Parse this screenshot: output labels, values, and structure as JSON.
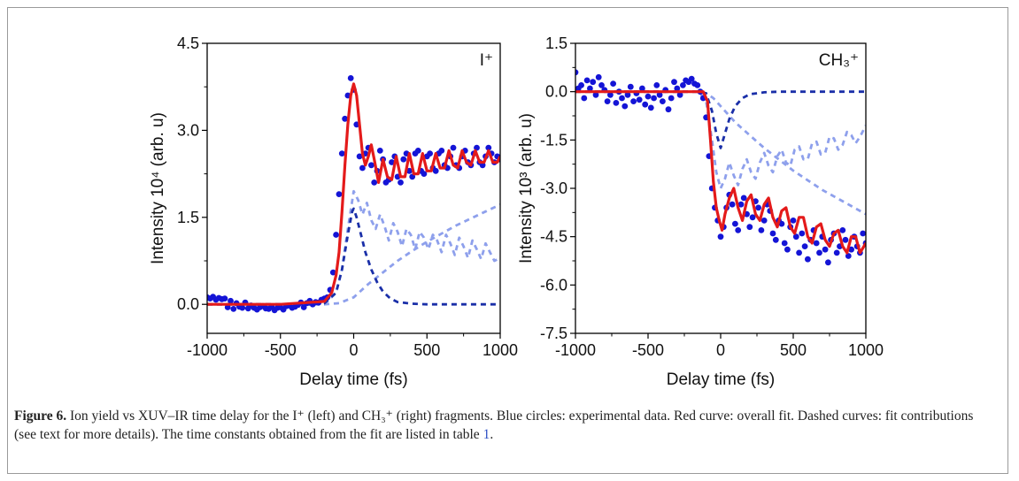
{
  "figure": {
    "caption_label": "Figure 6.",
    "caption_body": "Ion yield vs XUV–IR time delay for the I⁺ (left) and CH₃⁺ (right) fragments. Blue circles: experimental data. Red curve: overall fit. Dashed curves: fit contributions (see text for more details). The time constants obtained from the fit are listed in table ",
    "caption_ref": "1",
    "caption_end": "."
  },
  "colors": {
    "data": "#1414d6",
    "fit": "#e41a1a",
    "dash_dark": "#1a2fa8",
    "dash_light": "#8ea0ec"
  },
  "chart_data": [
    {
      "type": "scatter",
      "panel": "left",
      "label": "I⁺",
      "xlabel": "Delay time (fs)",
      "ylabel": "Intensity 10⁴ (arb. u)",
      "xlim": [
        -1000,
        1000
      ],
      "ylim": [
        -0.5,
        4.5
      ],
      "xticks": [
        -1000,
        -500,
        0,
        500,
        1000
      ],
      "yticks": [
        0.0,
        1.5,
        3.0,
        4.5
      ],
      "ytick_labels": [
        "0.0",
        "1.5",
        "3.0",
        "4.5"
      ],
      "grid": false,
      "series": [
        {
          "kind": "data",
          "x": [
            -1000,
            -980,
            -960,
            -940,
            -920,
            -900,
            -880,
            -860,
            -840,
            -820,
            -800,
            -780,
            -760,
            -740,
            -720,
            -700,
            -680,
            -660,
            -640,
            -620,
            -600,
            -580,
            -560,
            -540,
            -520,
            -500,
            -480,
            -460,
            -440,
            -420,
            -400,
            -380,
            -360,
            -340,
            -320,
            -300,
            -280,
            -260,
            -240,
            -220,
            -200,
            -180,
            -160,
            -140,
            -120,
            -100,
            -80,
            -60,
            -40,
            -20,
            0,
            20,
            40,
            60,
            80,
            100,
            120,
            140,
            160,
            180,
            200,
            220,
            240,
            260,
            280,
            300,
            320,
            340,
            360,
            380,
            400,
            420,
            440,
            460,
            480,
            500,
            520,
            540,
            560,
            580,
            600,
            620,
            640,
            660,
            680,
            700,
            720,
            740,
            760,
            780,
            800,
            820,
            840,
            860,
            880,
            900,
            920,
            940,
            960,
            980,
            1000
          ],
          "y": [
            0.12,
            0.1,
            0.13,
            0.08,
            0.11,
            0.09,
            0.1,
            -0.05,
            0.06,
            -0.08,
            0.02,
            -0.04,
            -0.06,
            0.03,
            -0.07,
            -0.02,
            -0.06,
            -0.09,
            -0.05,
            -0.03,
            -0.07,
            -0.08,
            -0.04,
            -0.1,
            -0.06,
            -0.05,
            -0.09,
            -0.03,
            -0.02,
            -0.06,
            -0.04,
            -0.01,
            0.03,
            -0.05,
            0.02,
            0.06,
            0.0,
            0.04,
            0.03,
            0.08,
            0.1,
            0.12,
            0.25,
            0.55,
            1.2,
            1.9,
            2.6,
            3.2,
            3.6,
            3.9,
            3.7,
            3.1,
            2.55,
            2.35,
            2.6,
            2.7,
            2.4,
            2.1,
            2.3,
            2.65,
            2.5,
            2.1,
            2.15,
            2.45,
            2.55,
            2.2,
            2.1,
            2.5,
            2.6,
            2.3,
            2.2,
            2.6,
            2.65,
            2.3,
            2.25,
            2.55,
            2.6,
            2.35,
            2.3,
            2.6,
            2.65,
            2.4,
            2.35,
            2.55,
            2.7,
            2.4,
            2.35,
            2.55,
            2.65,
            2.45,
            2.4,
            2.6,
            2.7,
            2.45,
            2.4,
            2.55,
            2.7,
            2.6,
            2.45,
            2.55,
            2.5
          ]
        },
        {
          "kind": "fit",
          "x": [
            -1000,
            -500,
            -200,
            -150,
            -120,
            -100,
            -80,
            -60,
            -40,
            -20,
            0,
            20,
            40,
            60,
            80,
            100,
            120,
            140,
            170,
            200,
            230,
            260,
            290,
            320,
            350,
            380,
            410,
            440,
            470,
            500,
            530,
            560,
            590,
            620,
            650,
            680,
            710,
            740,
            770,
            800,
            830,
            860,
            890,
            920,
            950,
            980,
            1000
          ],
          "y": [
            0.0,
            0.0,
            0.05,
            0.2,
            0.5,
            0.9,
            1.6,
            2.4,
            3.1,
            3.6,
            3.8,
            3.6,
            3.1,
            2.6,
            2.4,
            2.55,
            2.75,
            2.5,
            2.1,
            2.5,
            2.2,
            2.15,
            2.55,
            2.2,
            2.2,
            2.6,
            2.25,
            2.25,
            2.6,
            2.3,
            2.3,
            2.6,
            2.35,
            2.35,
            2.65,
            2.4,
            2.35,
            2.65,
            2.45,
            2.4,
            2.65,
            2.45,
            2.45,
            2.65,
            2.45,
            2.45,
            2.55
          ]
        },
        {
          "kind": "dash_dark",
          "x": [
            -1000,
            -300,
            -200,
            -120,
            -80,
            -40,
            -10,
            0,
            20,
            50,
            80,
            120,
            160,
            200,
            250,
            300,
            400,
            500,
            700,
            1000
          ],
          "y": [
            0.0,
            0.0,
            0.02,
            0.2,
            0.6,
            1.2,
            1.6,
            1.65,
            1.5,
            1.2,
            0.9,
            0.6,
            0.38,
            0.22,
            0.1,
            0.04,
            0.01,
            0.0,
            0.0,
            0.0
          ]
        },
        {
          "kind": "dash_light_oscillating",
          "x": [
            -1000,
            -200,
            -120,
            -80,
            -40,
            0,
            30,
            60,
            90,
            120,
            150,
            180,
            210,
            240,
            270,
            300,
            330,
            360,
            390,
            420,
            450,
            480,
            510,
            540,
            570,
            600,
            630,
            660,
            690,
            720,
            750,
            780,
            810,
            840,
            870,
            900,
            930,
            960,
            1000
          ],
          "y": [
            0.0,
            0.0,
            0.2,
            0.6,
            1.3,
            1.95,
            1.8,
            1.55,
            1.75,
            1.45,
            1.3,
            1.55,
            1.35,
            1.1,
            1.4,
            1.25,
            1.0,
            1.3,
            1.2,
            0.95,
            1.25,
            1.15,
            0.95,
            1.2,
            1.1,
            0.9,
            1.2,
            1.05,
            0.85,
            1.15,
            1.0,
            0.8,
            1.1,
            0.95,
            0.78,
            1.05,
            0.9,
            0.75,
            0.8
          ]
        },
        {
          "kind": "dash_light_rising",
          "x": [
            -1000,
            -200,
            -100,
            0,
            100,
            200,
            300,
            400,
            500,
            600,
            700,
            800,
            900,
            1000
          ],
          "y": [
            0.0,
            0.0,
            0.02,
            0.12,
            0.35,
            0.55,
            0.75,
            0.92,
            1.08,
            1.22,
            1.36,
            1.48,
            1.6,
            1.72
          ]
        }
      ]
    },
    {
      "type": "scatter",
      "panel": "right",
      "label": "CH₃⁺",
      "xlabel": "Delay time (fs)",
      "ylabel": "Intensity 10³ (arb. u)",
      "xlim": [
        -1000,
        1000
      ],
      "ylim": [
        -7.5,
        1.5
      ],
      "xticks": [
        -1000,
        -500,
        0,
        500,
        1000
      ],
      "yticks": [
        -7.5,
        -6.0,
        -4.5,
        -3.0,
        -1.5,
        0.0,
        1.5
      ],
      "ytick_labels": [
        "-7.5",
        "-6.0",
        "-4.5",
        "-3.0",
        "-1.5",
        "0.0",
        "1.5"
      ],
      "grid": false,
      "series": [
        {
          "kind": "data",
          "x": [
            -1000,
            -980,
            -960,
            -940,
            -920,
            -900,
            -880,
            -860,
            -840,
            -820,
            -800,
            -780,
            -760,
            -740,
            -720,
            -700,
            -680,
            -660,
            -640,
            -620,
            -600,
            -580,
            -560,
            -540,
            -520,
            -500,
            -480,
            -460,
            -440,
            -420,
            -400,
            -380,
            -360,
            -340,
            -320,
            -300,
            -280,
            -260,
            -240,
            -220,
            -200,
            -180,
            -160,
            -140,
            -120,
            -100,
            -80,
            -60,
            -40,
            -20,
            0,
            20,
            40,
            60,
            80,
            100,
            120,
            140,
            160,
            180,
            200,
            220,
            240,
            260,
            280,
            300,
            320,
            340,
            360,
            380,
            400,
            420,
            440,
            460,
            480,
            500,
            520,
            540,
            560,
            580,
            600,
            620,
            640,
            660,
            680,
            700,
            720,
            740,
            760,
            780,
            800,
            820,
            840,
            860,
            880,
            900,
            920,
            940,
            960,
            980,
            1000
          ],
          "y": [
            0.6,
            0.1,
            0.2,
            -0.2,
            0.35,
            0.1,
            0.3,
            -0.1,
            0.45,
            0.2,
            0.05,
            -0.3,
            -0.1,
            0.25,
            -0.35,
            0.0,
            -0.2,
            -0.45,
            -0.1,
            0.15,
            -0.3,
            -0.05,
            -0.25,
            0.1,
            -0.4,
            -0.15,
            -0.5,
            -0.2,
            0.2,
            -0.1,
            -0.3,
            0.05,
            -0.55,
            -0.2,
            0.3,
            0.1,
            -0.1,
            0.2,
            0.35,
            0.3,
            0.4,
            0.25,
            0.2,
            0.0,
            -0.2,
            -0.8,
            -2.0,
            -3.0,
            -3.6,
            -4.0,
            -4.5,
            -4.2,
            -3.6,
            -3.2,
            -3.5,
            -4.1,
            -4.3,
            -3.5,
            -3.3,
            -3.8,
            -4.2,
            -3.9,
            -3.4,
            -3.6,
            -4.3,
            -4.0,
            -3.5,
            -3.7,
            -4.4,
            -4.6,
            -4.0,
            -4.1,
            -4.7,
            -4.9,
            -4.2,
            -4.0,
            -4.5,
            -5.0,
            -4.4,
            -4.8,
            -5.2,
            -4.6,
            -4.3,
            -4.7,
            -5.0,
            -4.5,
            -4.9,
            -5.3,
            -4.6,
            -4.4,
            -5.0,
            -4.8,
            -4.3,
            -4.6,
            -5.1,
            -4.9,
            -4.5,
            -4.8,
            -5.0,
            -4.4,
            -4.7
          ]
        },
        {
          "kind": "fit",
          "x": [
            -1000,
            -500,
            -120,
            -90,
            -70,
            -50,
            -30,
            -10,
            10,
            30,
            60,
            90,
            120,
            150,
            180,
            210,
            240,
            270,
            300,
            330,
            360,
            390,
            420,
            450,
            480,
            510,
            540,
            570,
            600,
            630,
            660,
            690,
            720,
            750,
            780,
            810,
            840,
            870,
            900,
            930,
            960,
            1000
          ],
          "y": [
            0.0,
            0.0,
            0.0,
            -0.3,
            -1.5,
            -2.8,
            -3.6,
            -4.0,
            -4.3,
            -3.8,
            -3.3,
            -3.0,
            -3.6,
            -4.0,
            -3.4,
            -3.2,
            -3.8,
            -4.0,
            -3.5,
            -3.3,
            -3.9,
            -4.2,
            -3.7,
            -3.6,
            -4.2,
            -4.4,
            -3.9,
            -3.9,
            -4.5,
            -4.7,
            -4.2,
            -4.1,
            -4.6,
            -4.8,
            -4.4,
            -4.3,
            -4.8,
            -5.0,
            -4.5,
            -4.5,
            -5.0,
            -4.7
          ]
        },
        {
          "kind": "dash_dark",
          "x": [
            -1000,
            -150,
            -100,
            -60,
            -30,
            0,
            30,
            60,
            100,
            150,
            200,
            300,
            400,
            600,
            1000
          ],
          "y": [
            0.0,
            0.0,
            -0.05,
            -0.6,
            -1.3,
            -1.75,
            -1.3,
            -0.85,
            -0.45,
            -0.2,
            -0.08,
            -0.02,
            0.0,
            0.0,
            0.0
          ]
        },
        {
          "kind": "dash_light_oscillating",
          "x": [
            -1000,
            -150,
            -100,
            -60,
            -30,
            0,
            30,
            60,
            90,
            120,
            150,
            180,
            210,
            240,
            270,
            300,
            330,
            360,
            390,
            420,
            450,
            480,
            510,
            540,
            570,
            600,
            630,
            660,
            690,
            720,
            750,
            780,
            810,
            840,
            870,
            900,
            930,
            960,
            1000
          ],
          "y": [
            0.0,
            0.0,
            -0.3,
            -1.5,
            -2.5,
            -3.0,
            -2.7,
            -2.2,
            -2.6,
            -2.9,
            -2.4,
            -2.1,
            -2.5,
            -2.7,
            -2.2,
            -1.9,
            -2.3,
            -2.5,
            -2.0,
            -1.8,
            -2.2,
            -2.3,
            -1.8,
            -1.7,
            -2.1,
            -2.1,
            -1.6,
            -1.55,
            -1.95,
            -1.9,
            -1.4,
            -1.45,
            -1.8,
            -1.65,
            -1.25,
            -1.35,
            -1.6,
            -1.4,
            -1.05
          ]
        },
        {
          "kind": "dash_light_decay",
          "x": [
            -1000,
            -150,
            -100,
            -50,
            0,
            50,
            100,
            200,
            300,
            400,
            500,
            600,
            700,
            800,
            900,
            1000
          ],
          "y": [
            0.0,
            0.0,
            -0.05,
            -0.2,
            -0.45,
            -0.7,
            -0.95,
            -1.35,
            -1.75,
            -2.1,
            -2.45,
            -2.75,
            -3.05,
            -3.3,
            -3.55,
            -3.8
          ]
        }
      ]
    }
  ]
}
